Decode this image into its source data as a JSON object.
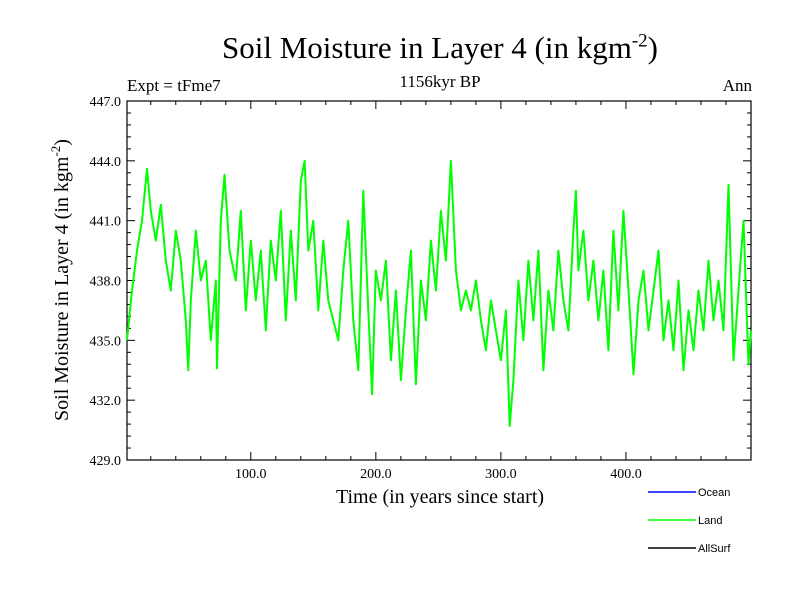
{
  "header": {
    "title_main": "Soil Moisture in Layer 4 (in kgm",
    "title_sup": "-2",
    "title_close": ")",
    "expt": "Expt = tFme7",
    "subtitle": "1156kyr BP",
    "season": "Ann"
  },
  "chart_data": {
    "type": "line",
    "title": "Soil Moisture in Layer 4 (in kgm-2)",
    "xlabel": "Time (in years since start)",
    "ylabel": "Soil Moisture in Layer 4 (in kgm-2)",
    "xlim": [
      1,
      500
    ],
    "ylim": [
      429.0,
      447.0
    ],
    "x_ticks": [
      100,
      200,
      300,
      400
    ],
    "x_tick_labels": [
      "100.0",
      "200.0",
      "300.0",
      "400.0"
    ],
    "y_ticks": [
      429,
      432,
      435,
      438,
      441,
      444,
      447
    ],
    "y_tick_labels": [
      "429.0",
      "432.0",
      "435.0",
      "438.0",
      "441.0",
      "444.0",
      "447.0"
    ],
    "legend": {
      "placement": "bottom-right",
      "entries": [
        {
          "name": "Ocean",
          "color": "#0000ff"
        },
        {
          "name": "Land",
          "color": "#00ff00"
        },
        {
          "name": "AllSurf",
          "color": "#000000"
        }
      ]
    },
    "series": [
      {
        "name": "Land",
        "color": "#00ff00",
        "x": [
          1,
          5,
          9,
          13,
          17,
          20,
          24,
          28,
          32,
          36,
          40,
          44,
          48,
          50,
          52,
          56,
          60,
          64,
          68,
          72,
          73,
          76,
          79,
          83,
          88,
          92,
          96,
          100,
          104,
          108,
          112,
          116,
          120,
          124,
          128,
          132,
          136,
          140,
          143,
          146,
          150,
          154,
          158,
          162,
          166,
          170,
          174,
          178,
          182,
          186,
          190,
          194,
          197,
          200,
          204,
          208,
          212,
          216,
          220,
          224,
          228,
          232,
          236,
          240,
          244,
          248,
          252,
          256,
          260,
          264,
          268,
          272,
          276,
          280,
          284,
          288,
          292,
          296,
          300,
          304,
          307,
          310,
          314,
          318,
          322,
          326,
          330,
          334,
          338,
          342,
          346,
          350,
          354,
          358,
          360,
          362,
          366,
          370,
          374,
          378,
          382,
          386,
          390,
          394,
          398,
          402,
          406,
          410,
          414,
          418,
          422,
          426,
          430,
          434,
          438,
          442,
          446,
          450,
          454,
          458,
          462,
          466,
          470,
          474,
          478,
          482,
          486,
          490,
          494,
          498,
          500
        ],
        "values": [
          435.0,
          437.5,
          439.5,
          441.0,
          443.6,
          441.5,
          440.0,
          441.8,
          439.0,
          437.5,
          440.5,
          439.0,
          436.0,
          433.5,
          437.0,
          440.5,
          438.0,
          439.0,
          435.0,
          438.0,
          433.6,
          441.0,
          443.3,
          439.5,
          438.0,
          441.5,
          436.5,
          440.0,
          437.0,
          439.5,
          435.5,
          440.0,
          438.0,
          441.5,
          436.0,
          440.5,
          437.0,
          443.0,
          444.0,
          439.5,
          441.0,
          436.5,
          440.0,
          437.0,
          436.0,
          435.0,
          438.5,
          441.0,
          436.0,
          433.5,
          442.5,
          436.5,
          432.3,
          438.5,
          437.0,
          439.0,
          434.0,
          437.5,
          433.0,
          436.5,
          439.5,
          432.8,
          438.0,
          436.0,
          440.0,
          437.5,
          441.5,
          439.0,
          444.0,
          438.5,
          436.5,
          437.5,
          436.5,
          438.0,
          436.0,
          434.5,
          437.0,
          435.5,
          434.0,
          436.5,
          430.7,
          433.0,
          438.0,
          435.0,
          439.0,
          436.0,
          439.5,
          433.5,
          437.5,
          435.5,
          439.5,
          437.0,
          435.5,
          440.5,
          442.5,
          438.5,
          440.5,
          437.0,
          439.0,
          436.0,
          438.5,
          434.5,
          440.5,
          436.5,
          441.5,
          437.5,
          433.3,
          437.0,
          438.5,
          435.5,
          437.5,
          439.5,
          435.0,
          437.0,
          434.5,
          438.0,
          433.5,
          436.5,
          434.5,
          437.5,
          435.5,
          439.0,
          436.0,
          438.0,
          435.5,
          442.8,
          434.0,
          437.5,
          441.0,
          433.8,
          435.5
        ]
      }
    ]
  }
}
